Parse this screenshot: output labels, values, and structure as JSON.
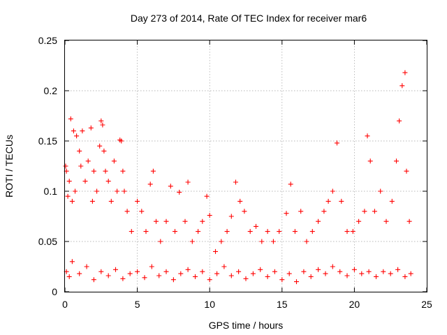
{
  "chart_data": {
    "type": "scatter",
    "title": "Day 273 of 2014, Rate Of TEC Index for receiver mar6",
    "xlabel": "GPS time / hours",
    "ylabel": "ROTI / TECUs",
    "xlim": [
      0,
      25
    ],
    "ylim": [
      0,
      0.25
    ],
    "xticks": [
      0,
      5,
      10,
      15,
      20,
      25
    ],
    "xtick_labels": [
      "0",
      "5",
      "10",
      "15",
      "20",
      "25"
    ],
    "yticks": [
      0,
      0.05,
      0.1,
      0.15,
      0.2,
      0.25
    ],
    "ytick_labels": [
      "0",
      "0.05",
      "0.1",
      "0.15",
      "0.2",
      "0.25"
    ],
    "grid": true,
    "marker": "+",
    "color": "#ff0000",
    "series": [
      {
        "name": "ROTI",
        "points": [
          [
            0.05,
            0.125
          ],
          [
            0.1,
            0.12
          ],
          [
            0.2,
            0.095
          ],
          [
            0.3,
            0.11
          ],
          [
            0.4,
            0.172
          ],
          [
            0.5,
            0.09
          ],
          [
            0.6,
            0.16
          ],
          [
            0.7,
            0.1
          ],
          [
            0.8,
            0.155
          ],
          [
            1.0,
            0.14
          ],
          [
            1.1,
            0.125
          ],
          [
            1.2,
            0.16
          ],
          [
            1.4,
            0.11
          ],
          [
            1.6,
            0.13
          ],
          [
            1.8,
            0.163
          ],
          [
            1.9,
            0.09
          ],
          [
            2.0,
            0.12
          ],
          [
            2.2,
            0.1
          ],
          [
            2.4,
            0.145
          ],
          [
            2.5,
            0.17
          ],
          [
            2.6,
            0.166
          ],
          [
            2.7,
            0.14
          ],
          [
            2.8,
            0.12
          ],
          [
            3.0,
            0.11
          ],
          [
            3.2,
            0.09
          ],
          [
            3.4,
            0.13
          ],
          [
            3.6,
            0.1
          ],
          [
            3.8,
            0.151
          ],
          [
            3.9,
            0.15
          ],
          [
            4.0,
            0.12
          ],
          [
            4.1,
            0.1
          ],
          [
            4.3,
            0.08
          ],
          [
            4.6,
            0.06
          ],
          [
            5.0,
            0.09
          ],
          [
            5.3,
            0.08
          ],
          [
            5.6,
            0.06
          ],
          [
            5.9,
            0.107
          ],
          [
            6.1,
            0.12
          ],
          [
            6.3,
            0.07
          ],
          [
            6.6,
            0.05
          ],
          [
            7.0,
            0.07
          ],
          [
            7.3,
            0.105
          ],
          [
            7.6,
            0.06
          ],
          [
            7.9,
            0.099
          ],
          [
            8.3,
            0.07
          ],
          [
            8.5,
            0.109
          ],
          [
            8.8,
            0.05
          ],
          [
            9.2,
            0.06
          ],
          [
            9.5,
            0.07
          ],
          [
            9.8,
            0.095
          ],
          [
            10.0,
            0.076
          ],
          [
            10.4,
            0.04
          ],
          [
            10.8,
            0.05
          ],
          [
            11.2,
            0.06
          ],
          [
            11.5,
            0.075
          ],
          [
            11.8,
            0.109
          ],
          [
            12.1,
            0.09
          ],
          [
            12.4,
            0.08
          ],
          [
            12.8,
            0.06
          ],
          [
            13.2,
            0.065
          ],
          [
            13.6,
            0.05
          ],
          [
            14.0,
            0.06
          ],
          [
            14.4,
            0.05
          ],
          [
            14.8,
            0.06
          ],
          [
            15.3,
            0.078
          ],
          [
            15.6,
            0.107
          ],
          [
            15.9,
            0.06
          ],
          [
            16.3,
            0.08
          ],
          [
            16.7,
            0.05
          ],
          [
            17.1,
            0.06
          ],
          [
            17.5,
            0.07
          ],
          [
            17.9,
            0.08
          ],
          [
            18.2,
            0.09
          ],
          [
            18.5,
            0.1
          ],
          [
            18.8,
            0.148
          ],
          [
            19.1,
            0.09
          ],
          [
            19.5,
            0.06
          ],
          [
            19.9,
            0.06
          ],
          [
            20.3,
            0.07
          ],
          [
            20.7,
            0.08
          ],
          [
            20.9,
            0.155
          ],
          [
            21.1,
            0.13
          ],
          [
            21.4,
            0.08
          ],
          [
            21.8,
            0.1
          ],
          [
            22.2,
            0.07
          ],
          [
            22.6,
            0.09
          ],
          [
            22.9,
            0.13
          ],
          [
            23.1,
            0.17
          ],
          [
            23.3,
            0.205
          ],
          [
            23.5,
            0.218
          ],
          [
            23.6,
            0.12
          ],
          [
            23.8,
            0.07
          ],
          [
            0.1,
            0.02
          ],
          [
            0.3,
            0.015
          ],
          [
            0.5,
            0.03
          ],
          [
            1.0,
            0.018
          ],
          [
            1.5,
            0.025
          ],
          [
            2.0,
            0.012
          ],
          [
            2.5,
            0.02
          ],
          [
            3.0,
            0.016
          ],
          [
            3.5,
            0.022
          ],
          [
            4.0,
            0.013
          ],
          [
            4.5,
            0.018
          ],
          [
            5.0,
            0.02
          ],
          [
            5.5,
            0.014
          ],
          [
            6.0,
            0.025
          ],
          [
            6.5,
            0.016
          ],
          [
            7.0,
            0.02
          ],
          [
            7.5,
            0.012
          ],
          [
            8.0,
            0.018
          ],
          [
            8.5,
            0.022
          ],
          [
            9.0,
            0.015
          ],
          [
            9.5,
            0.02
          ],
          [
            10.0,
            0.012
          ],
          [
            10.5,
            0.018
          ],
          [
            11.0,
            0.025
          ],
          [
            11.5,
            0.016
          ],
          [
            12.0,
            0.02
          ],
          [
            12.5,
            0.013
          ],
          [
            13.0,
            0.018
          ],
          [
            13.5,
            0.022
          ],
          [
            14.0,
            0.015
          ],
          [
            14.5,
            0.02
          ],
          [
            15.0,
            0.012
          ],
          [
            15.5,
            0.018
          ],
          [
            16.0,
            0.01
          ],
          [
            16.5,
            0.02
          ],
          [
            17.0,
            0.015
          ],
          [
            17.5,
            0.022
          ],
          [
            18.0,
            0.018
          ],
          [
            18.5,
            0.025
          ],
          [
            19.0,
            0.02
          ],
          [
            19.5,
            0.016
          ],
          [
            20.0,
            0.022
          ],
          [
            20.5,
            0.018
          ],
          [
            21.0,
            0.02
          ],
          [
            21.5,
            0.015
          ],
          [
            22.0,
            0.02
          ],
          [
            22.5,
            0.018
          ],
          [
            23.0,
            0.022
          ],
          [
            23.5,
            0.015
          ],
          [
            23.9,
            0.018
          ]
        ]
      }
    ]
  }
}
